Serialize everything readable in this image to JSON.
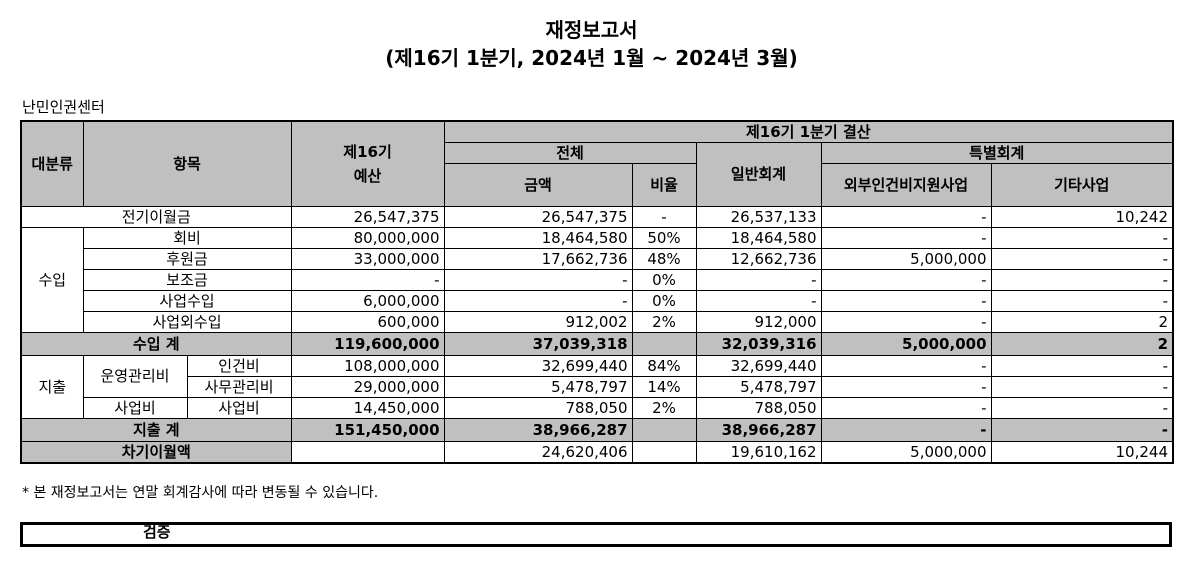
{
  "header": {
    "title": "재정보고서",
    "subtitle": "(제16기 1분기, 2024년 1월 ~ 2024년 3월)",
    "organization": "난민인권센터"
  },
  "table": {
    "head": {
      "category": "대분류",
      "item": "항목",
      "budget": "제16기\n예산",
      "settlement": "제16기 1분기 결산",
      "total": "전체",
      "amount": "금액",
      "ratio": "비율",
      "general": "일반회계",
      "special": "특별회계",
      "external": "외부인건비지원사업",
      "other": "기타사업"
    },
    "carryover_prev": {
      "label": "전기이월금",
      "values": [
        "26,547,375",
        "26,547,375",
        "-",
        "26,537,133",
        "-",
        "10,242"
      ]
    },
    "income": {
      "label": "수입",
      "rows": [
        {
          "item": "회비",
          "values": [
            "80,000,000",
            "18,464,580",
            "50%",
            "18,464,580",
            "-",
            "-"
          ]
        },
        {
          "item": "후원금",
          "values": [
            "33,000,000",
            "17,662,736",
            "48%",
            "12,662,736",
            "5,000,000",
            "-"
          ]
        },
        {
          "item": "보조금",
          "values": [
            "-",
            "-",
            "0%",
            "-",
            "-",
            "-"
          ]
        },
        {
          "item": "사업수입",
          "values": [
            "6,000,000",
            "-",
            "0%",
            "-",
            "-",
            "-"
          ]
        },
        {
          "item": "사업외수입",
          "values": [
            "600,000",
            "912,002",
            "2%",
            "912,000",
            "-",
            "2"
          ]
        }
      ]
    },
    "income_total": {
      "label": "수입 계",
      "values": [
        "119,600,000",
        "37,039,318",
        null,
        "32,039,316",
        "5,000,000",
        "2"
      ]
    },
    "expense": {
      "label": "지출",
      "groups": [
        {
          "label": "운영관리비",
          "rows": [
            {
              "item": "인건비",
              "values": [
                "108,000,000",
                "32,699,440",
                "84%",
                "32,699,440",
                "-",
                "-"
              ]
            },
            {
              "item": "사무관리비",
              "values": [
                "29,000,000",
                "5,478,797",
                "14%",
                "5,478,797",
                "-",
                "-"
              ]
            }
          ]
        },
        {
          "label": "사업비",
          "rows": [
            {
              "item": "사업비",
              "values": [
                "14,450,000",
                "788,050",
                "2%",
                "788,050",
                "-",
                "-"
              ]
            }
          ]
        }
      ]
    },
    "expense_total": {
      "label": "지출 계",
      "values": [
        "151,450,000",
        "38,966,287",
        null,
        "38,966,287",
        "-",
        "-"
      ]
    },
    "carryover_next": {
      "label": "차기이월액",
      "values": [
        null,
        "24,620,406",
        null,
        "19,610,162",
        "5,000,000",
        "10,244"
      ]
    }
  },
  "footnote": "* 본 재정보고서는 연말 회계감사에 따라 변동될 수 있습니다.",
  "verification": "검증"
}
